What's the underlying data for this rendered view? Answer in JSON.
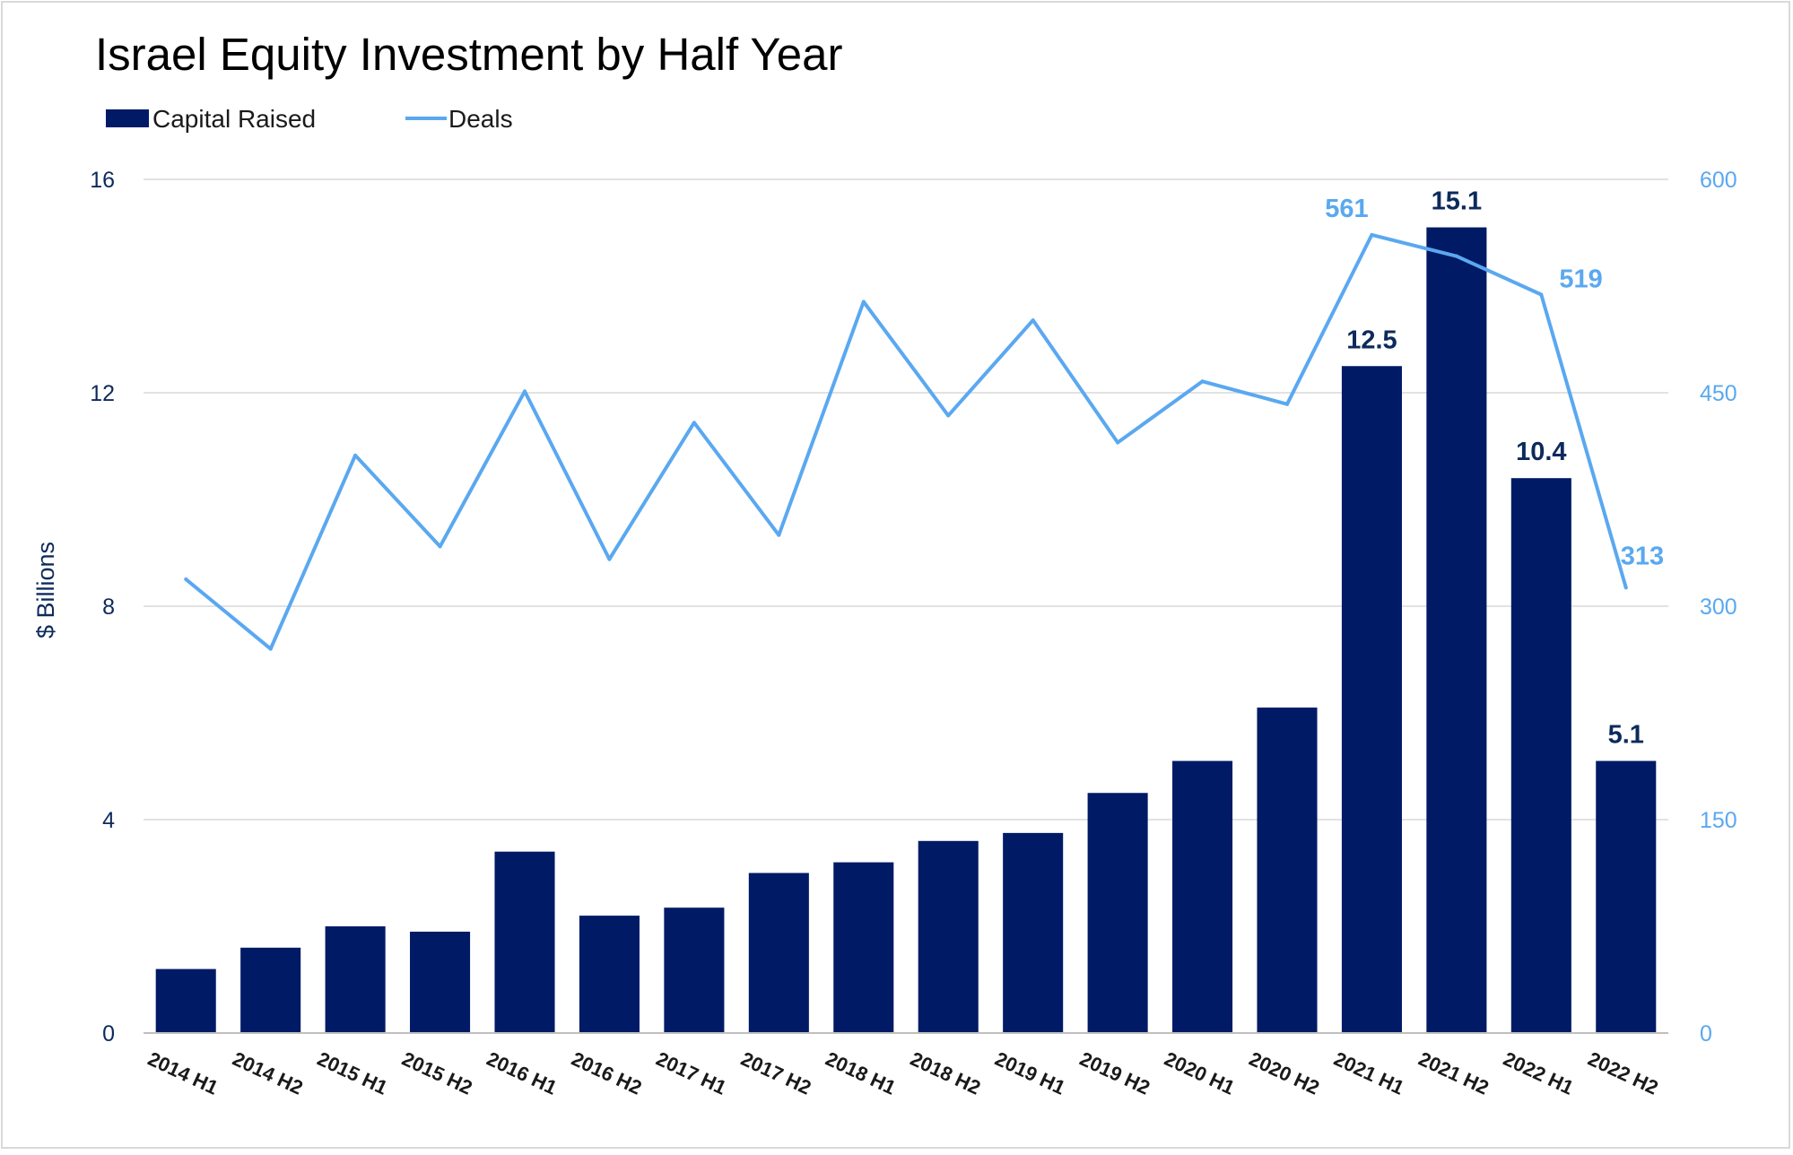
{
  "chart_data": {
    "type": "bar+line",
    "title": "Israel Equity Investment by Half Year",
    "ylabel": "$ Billions",
    "ylim": [
      0,
      16
    ],
    "yticks": [
      0,
      4,
      8,
      12,
      16
    ],
    "y2lim": [
      0,
      600
    ],
    "y2ticks": [
      0,
      150,
      300,
      450,
      600
    ],
    "grid": true,
    "legend_position": "top-left",
    "categories": [
      "2014 H1",
      "2014 H2",
      "2015 H1",
      "2015 H2",
      "2016 H1",
      "2016 H2",
      "2017 H1",
      "2017 H2",
      "2018 H1",
      "2018 H2",
      "2019 H1",
      "2019 H2",
      "2020 H1",
      "2020 H2",
      "2021 H1",
      "2021 H2",
      "2022 H1",
      "2022 H2"
    ],
    "series": [
      {
        "name": "Capital Raised",
        "type": "bar",
        "axis": "left",
        "color": "#001a66",
        "values": [
          1.2,
          1.6,
          2.0,
          1.9,
          3.4,
          2.2,
          2.35,
          3.0,
          3.2,
          3.6,
          3.75,
          4.5,
          5.1,
          6.1,
          12.5,
          15.1,
          10.4,
          5.1
        ],
        "data_labels": [
          null,
          null,
          null,
          null,
          null,
          null,
          null,
          null,
          null,
          null,
          null,
          null,
          null,
          null,
          "12.5",
          "15.1",
          "10.4",
          "5.1"
        ]
      },
      {
        "name": "Deals",
        "type": "line",
        "axis": "right",
        "color": "#5aa8f0",
        "values": [
          319,
          270,
          406,
          342,
          451,
          333,
          429,
          350,
          514,
          434,
          501,
          415,
          458,
          442,
          561,
          546,
          519,
          313
        ],
        "data_labels": [
          null,
          null,
          null,
          null,
          null,
          null,
          null,
          null,
          null,
          null,
          null,
          null,
          null,
          null,
          "561",
          null,
          "519",
          "313"
        ]
      }
    ]
  }
}
